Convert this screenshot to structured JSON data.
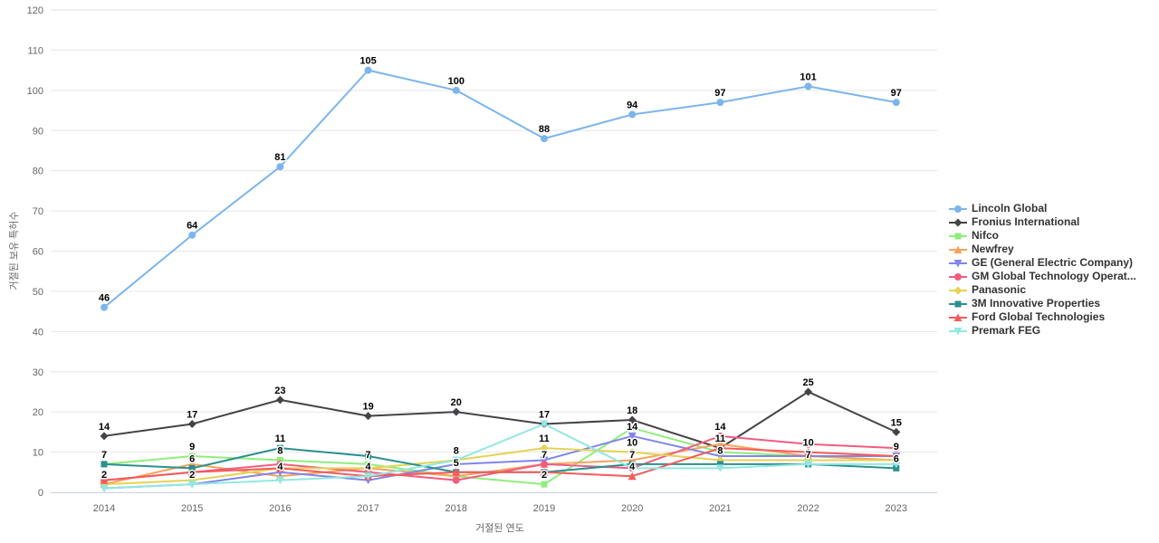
{
  "chart_data": {
    "type": "line",
    "title": "",
    "xlabel": "거절된 연도",
    "ylabel": "거절된 보유 특허수",
    "x_categories": [
      "2014",
      "2015",
      "2016",
      "2017",
      "2018",
      "2019",
      "2020",
      "2021",
      "2022",
      "2023"
    ],
    "y_ticks": [
      0,
      10,
      20,
      30,
      40,
      50,
      60,
      70,
      80,
      90,
      100,
      110,
      120
    ],
    "ylim": [
      0,
      120
    ],
    "grid": "horizontal-only",
    "legend_position": "right",
    "series": [
      {
        "name": "Lincoln Global",
        "color": "#7cb5ec",
        "marker": "circle",
        "values": [
          46,
          64,
          81,
          105,
          100,
          88,
          94,
          97,
          101,
          97
        ],
        "labeled": [
          0,
          1,
          2,
          3,
          4,
          5,
          6,
          7,
          8,
          9
        ]
      },
      {
        "name": "Fronius International",
        "color": "#434348",
        "marker": "diamond",
        "values": [
          14,
          17,
          23,
          19,
          20,
          17,
          18,
          11,
          25,
          15
        ],
        "labeled": [
          0,
          1,
          2,
          3,
          4,
          5,
          6,
          8,
          9
        ]
      },
      {
        "name": "Nifco",
        "color": "#90ed7d",
        "marker": "square",
        "values": [
          7,
          9,
          8,
          7,
          4,
          2,
          16,
          10,
          9,
          8
        ],
        "labeled": [
          1,
          2,
          3,
          5
        ]
      },
      {
        "name": "Newfrey",
        "color": "#f7a35c",
        "marker": "triangle",
        "values": [
          2,
          7,
          4,
          6,
          4,
          7,
          8,
          12,
          9,
          8
        ],
        "labeled": [
          0,
          2
        ]
      },
      {
        "name": "GE (General Electric Company)",
        "color": "#8085e9",
        "marker": "triangle-down",
        "values": [
          1,
          2,
          5,
          3,
          7,
          8,
          14,
          9,
          9,
          9
        ],
        "labeled": [
          1,
          6
        ]
      },
      {
        "name": "GM Global Technology Operat...",
        "color": "#f15c80",
        "marker": "circle",
        "values": [
          3,
          5,
          7,
          5,
          3,
          7,
          6,
          14,
          12,
          11
        ],
        "labeled": [
          5,
          7
        ]
      },
      {
        "name": "Panasonic",
        "color": "#e4d354",
        "marker": "diamond",
        "values": [
          2,
          3,
          6,
          6,
          8,
          11,
          10,
          8,
          8,
          8
        ],
        "labeled": [
          4,
          5,
          6,
          7
        ]
      },
      {
        "name": "3M Innovative Properties",
        "color": "#2b908f",
        "marker": "square",
        "values": [
          7,
          6,
          11,
          9,
          5,
          5,
          7,
          7,
          7,
          6
        ],
        "labeled": [
          0,
          1,
          2,
          4,
          6,
          9
        ]
      },
      {
        "name": "Ford Global Technologies",
        "color": "#f45b5b",
        "marker": "triangle",
        "values": [
          3,
          5,
          6,
          4,
          5,
          5,
          4,
          11,
          10,
          9
        ],
        "labeled": [
          3,
          6,
          7,
          8,
          9
        ]
      },
      {
        "name": "Premark FEG",
        "color": "#91e8e1",
        "marker": "triangle-down",
        "values": [
          1,
          2,
          3,
          4,
          8,
          17,
          6,
          6,
          7,
          7
        ],
        "labeled": [
          8
        ]
      }
    ]
  },
  "colors": {
    "grid": "#e6e6e6",
    "axis_line": "#ccd6eb",
    "tick_label": "#666666",
    "axis_title": "#666666",
    "data_label": "#000000",
    "data_label_halo": "#ffffff",
    "legend_text": "#333333",
    "background": "#ffffff"
  }
}
